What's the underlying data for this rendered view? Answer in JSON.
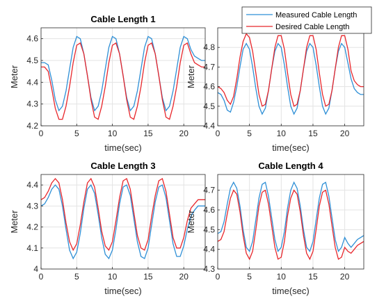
{
  "legend": {
    "placement": "top-right",
    "entries": [
      {
        "label": "Measured Cable Length",
        "color": "#2e8fd6"
      },
      {
        "label": "Desired Cable Length",
        "color": "#e8262b"
      }
    ]
  },
  "chart_data": [
    {
      "type": "line",
      "title": "Cable Length 1",
      "xlabel": "time(sec)",
      "ylabel": "Meter",
      "xlim": [
        0,
        23
      ],
      "ylim": [
        4.2,
        4.65
      ],
      "xticks": [
        0,
        5,
        10,
        15,
        20
      ],
      "yticks": [
        4.2,
        4.3,
        4.4,
        4.5,
        4.6
      ],
      "ytick_labels": [
        "4.2",
        "4.3",
        "4.4",
        "4.5",
        "4.6"
      ],
      "grid": true,
      "series": [
        {
          "name": "Measured Cable Length",
          "color": "#2e8fd6",
          "x": [
            0,
            0.5,
            1,
            1.5,
            2,
            2.5,
            3,
            3.5,
            4,
            4.5,
            5,
            5.5,
            6,
            6.5,
            7,
            7.5,
            8,
            8.5,
            9,
            9.5,
            10,
            10.5,
            11,
            11.5,
            12,
            12.5,
            13,
            13.5,
            14,
            14.5,
            15,
            15.5,
            16,
            16.5,
            17,
            17.5,
            18,
            18.5,
            19,
            19.5,
            20,
            20.5,
            21,
            21.5,
            22,
            22.5,
            23
          ],
          "y": [
            4.49,
            4.49,
            4.48,
            4.41,
            4.32,
            4.27,
            4.29,
            4.36,
            4.46,
            4.56,
            4.61,
            4.6,
            4.53,
            4.43,
            4.33,
            4.27,
            4.29,
            4.36,
            4.46,
            4.56,
            4.61,
            4.6,
            4.53,
            4.43,
            4.33,
            4.27,
            4.29,
            4.36,
            4.46,
            4.56,
            4.61,
            4.6,
            4.53,
            4.43,
            4.33,
            4.27,
            4.29,
            4.36,
            4.46,
            4.56,
            4.61,
            4.6,
            4.55,
            4.52,
            4.51,
            4.5,
            4.5
          ]
        },
        {
          "name": "Desired Cable Length",
          "color": "#e8262b",
          "x": [
            0,
            0.5,
            1,
            1.5,
            2,
            2.5,
            3,
            3.5,
            4,
            4.5,
            5,
            5.5,
            6,
            6.5,
            7,
            7.5,
            8,
            8.5,
            9,
            9.5,
            10,
            10.5,
            11,
            11.5,
            12,
            12.5,
            13,
            13.5,
            14,
            14.5,
            15,
            15.5,
            16,
            16.5,
            17,
            17.5,
            18,
            18.5,
            19,
            19.5,
            20,
            20.5,
            21,
            21.5,
            22,
            22.5,
            23
          ],
          "y": [
            4.47,
            4.47,
            4.45,
            4.37,
            4.28,
            4.23,
            4.23,
            4.29,
            4.38,
            4.49,
            4.57,
            4.58,
            4.53,
            4.43,
            4.32,
            4.24,
            4.23,
            4.29,
            4.38,
            4.49,
            4.57,
            4.58,
            4.53,
            4.43,
            4.32,
            4.24,
            4.23,
            4.29,
            4.38,
            4.49,
            4.57,
            4.58,
            4.53,
            4.43,
            4.32,
            4.24,
            4.23,
            4.29,
            4.38,
            4.49,
            4.57,
            4.58,
            4.53,
            4.49,
            4.48,
            4.47,
            4.47
          ]
        }
      ]
    },
    {
      "type": "line",
      "title": "",
      "xlabel": "time(sec)",
      "ylabel": "Meter",
      "xlim": [
        0,
        23
      ],
      "ylim": [
        4.4,
        4.9
      ],
      "xticks": [
        0,
        5,
        10,
        15,
        20
      ],
      "yticks": [
        4.4,
        4.5,
        4.6,
        4.7,
        4.8
      ],
      "ytick_labels": [
        "4.4",
        "4.5",
        "4.6",
        "4.7",
        "4.8"
      ],
      "grid": true,
      "series": [
        {
          "name": "Measured Cable Length",
          "color": "#2e8fd6",
          "x": [
            0,
            0.5,
            1,
            1.5,
            2,
            2.5,
            3,
            3.5,
            4,
            4.5,
            5,
            5.5,
            6,
            6.5,
            7,
            7.5,
            8,
            8.5,
            9,
            9.5,
            10,
            10.5,
            11,
            11.5,
            12,
            12.5,
            13,
            13.5,
            14,
            14.5,
            15,
            15.5,
            16,
            16.5,
            17,
            17.5,
            18,
            18.5,
            19,
            19.5,
            20,
            20.5,
            21,
            21.5,
            22,
            22.5,
            23
          ],
          "y": [
            4.57,
            4.56,
            4.53,
            4.48,
            4.47,
            4.52,
            4.6,
            4.7,
            4.79,
            4.82,
            4.79,
            4.7,
            4.59,
            4.5,
            4.46,
            4.49,
            4.58,
            4.69,
            4.78,
            4.82,
            4.8,
            4.71,
            4.6,
            4.5,
            4.46,
            4.49,
            4.58,
            4.69,
            4.78,
            4.82,
            4.8,
            4.71,
            4.6,
            4.5,
            4.46,
            4.49,
            4.58,
            4.69,
            4.78,
            4.82,
            4.8,
            4.72,
            4.64,
            4.59,
            4.57,
            4.56,
            4.56
          ]
        },
        {
          "name": "Desired Cable Length",
          "color": "#e8262b",
          "x": [
            0,
            0.5,
            1,
            1.5,
            2,
            2.5,
            3,
            3.5,
            4,
            4.5,
            5,
            5.5,
            6,
            6.5,
            7,
            7.5,
            8,
            8.5,
            9,
            9.5,
            10,
            10.5,
            11,
            11.5,
            12,
            12.5,
            13,
            13.5,
            14,
            14.5,
            15,
            15.5,
            16,
            16.5,
            17,
            17.5,
            18,
            18.5,
            19,
            19.5,
            20,
            20.5,
            21,
            21.5,
            22,
            22.5,
            23
          ],
          "y": [
            4.6,
            4.59,
            4.57,
            4.53,
            4.51,
            4.55,
            4.64,
            4.75,
            4.83,
            4.87,
            4.85,
            4.78,
            4.67,
            4.56,
            4.5,
            4.51,
            4.58,
            4.69,
            4.8,
            4.86,
            4.86,
            4.79,
            4.67,
            4.56,
            4.5,
            4.51,
            4.58,
            4.69,
            4.8,
            4.86,
            4.86,
            4.79,
            4.67,
            4.56,
            4.5,
            4.51,
            4.58,
            4.69,
            4.8,
            4.86,
            4.86,
            4.79,
            4.68,
            4.63,
            4.61,
            4.6,
            4.6
          ]
        }
      ]
    },
    {
      "type": "line",
      "title": "Cable Length 3",
      "xlabel": "time(sec)",
      "ylabel": "Meter",
      "xlim": [
        0,
        23
      ],
      "ylim": [
        4.0,
        4.45
      ],
      "xticks": [
        0,
        5,
        10,
        15,
        20
      ],
      "yticks": [
        4.0,
        4.1,
        4.2,
        4.3,
        4.4
      ],
      "ytick_labels": [
        "4",
        "4.1",
        "4.2",
        "4.3",
        "4.4"
      ],
      "grid": true,
      "series": [
        {
          "name": "Measured Cable Length",
          "color": "#2e8fd6",
          "x": [
            0,
            0.5,
            1,
            1.5,
            2,
            2.5,
            3,
            3.5,
            4,
            4.5,
            5,
            5.5,
            6,
            6.5,
            7,
            7.5,
            8,
            8.5,
            9,
            9.5,
            10,
            10.5,
            11,
            11.5,
            12,
            12.5,
            13,
            13.5,
            14,
            14.5,
            15,
            15.5,
            16,
            16.5,
            17,
            17.5,
            18,
            18.5,
            19,
            19.5,
            20,
            20.5,
            21,
            21.5,
            22,
            22.5,
            23
          ],
          "y": [
            4.3,
            4.31,
            4.34,
            4.38,
            4.4,
            4.38,
            4.3,
            4.19,
            4.09,
            4.05,
            4.08,
            4.17,
            4.29,
            4.38,
            4.4,
            4.36,
            4.26,
            4.15,
            4.07,
            4.05,
            4.09,
            4.19,
            4.31,
            4.39,
            4.4,
            4.35,
            4.24,
            4.13,
            4.06,
            4.05,
            4.1,
            4.21,
            4.32,
            4.39,
            4.4,
            4.34,
            4.23,
            4.12,
            4.06,
            4.06,
            4.11,
            4.19,
            4.25,
            4.28,
            4.3,
            4.3,
            4.3
          ]
        },
        {
          "name": "Desired Cable Length",
          "color": "#e8262b",
          "x": [
            0,
            0.5,
            1,
            1.5,
            2,
            2.5,
            3,
            3.5,
            4,
            4.5,
            5,
            5.5,
            6,
            6.5,
            7,
            7.5,
            8,
            8.5,
            9,
            9.5,
            10,
            10.5,
            11,
            11.5,
            12,
            12.5,
            13,
            13.5,
            14,
            14.5,
            15,
            15.5,
            16,
            16.5,
            17,
            17.5,
            18,
            18.5,
            19,
            19.5,
            20,
            20.5,
            21,
            21.5,
            22,
            22.5,
            23
          ],
          "y": [
            4.33,
            4.34,
            4.37,
            4.41,
            4.43,
            4.41,
            4.33,
            4.22,
            4.13,
            4.09,
            4.12,
            4.21,
            4.32,
            4.41,
            4.43,
            4.39,
            4.29,
            4.18,
            4.11,
            4.09,
            4.13,
            4.23,
            4.34,
            4.42,
            4.43,
            4.38,
            4.27,
            4.16,
            4.1,
            4.09,
            4.14,
            4.25,
            4.35,
            4.42,
            4.43,
            4.37,
            4.26,
            4.15,
            4.1,
            4.1,
            4.15,
            4.23,
            4.29,
            4.31,
            4.33,
            4.33,
            4.33
          ]
        }
      ]
    },
    {
      "type": "line",
      "title": "Cable Length 4",
      "xlabel": "time(sec)",
      "ylabel": "Meter",
      "xlim": [
        0,
        23
      ],
      "ylim": [
        4.3,
        4.78
      ],
      "xticks": [
        0,
        5,
        10,
        15,
        20
      ],
      "yticks": [
        4.3,
        4.4,
        4.5,
        4.6,
        4.7
      ],
      "ytick_labels": [
        "4.3",
        "4.4",
        "4.5",
        "4.6",
        "4.7"
      ],
      "grid": true,
      "series": [
        {
          "name": "Measured Cable Length",
          "color": "#2e8fd6",
          "x": [
            0,
            0.5,
            1,
            1.5,
            2,
            2.5,
            3,
            3.5,
            4,
            4.5,
            5,
            5.5,
            6,
            6.5,
            7,
            7.5,
            8,
            8.5,
            9,
            9.5,
            10,
            10.5,
            11,
            11.5,
            12,
            12.5,
            13,
            13.5,
            14,
            14.5,
            15,
            15.5,
            16,
            16.5,
            17,
            17.5,
            18,
            18.5,
            19,
            19.5,
            20,
            20.5,
            21,
            21.5,
            22,
            22.5,
            23
          ],
          "y": [
            4.48,
            4.49,
            4.54,
            4.63,
            4.71,
            4.74,
            4.71,
            4.62,
            4.5,
            4.41,
            4.39,
            4.44,
            4.55,
            4.66,
            4.73,
            4.74,
            4.67,
            4.56,
            4.45,
            4.39,
            4.41,
            4.49,
            4.61,
            4.7,
            4.74,
            4.71,
            4.62,
            4.5,
            4.41,
            4.39,
            4.44,
            4.55,
            4.66,
            4.73,
            4.74,
            4.67,
            4.56,
            4.45,
            4.39,
            4.41,
            4.46,
            4.43,
            4.41,
            4.43,
            4.45,
            4.46,
            4.47
          ]
        },
        {
          "name": "Desired Cable Length",
          "color": "#e8262b",
          "x": [
            0,
            0.5,
            1,
            1.5,
            2,
            2.5,
            3,
            3.5,
            4,
            4.5,
            5,
            5.5,
            6,
            6.5,
            7,
            7.5,
            8,
            8.5,
            9,
            9.5,
            10,
            10.5,
            11,
            11.5,
            12,
            12.5,
            13,
            13.5,
            14,
            14.5,
            15,
            15.5,
            16,
            16.5,
            17,
            17.5,
            18,
            18.5,
            19,
            19.5,
            20,
            20.5,
            21,
            21.5,
            22,
            22.5,
            23
          ],
          "y": [
            4.44,
            4.45,
            4.49,
            4.58,
            4.66,
            4.7,
            4.68,
            4.59,
            4.47,
            4.38,
            4.35,
            4.39,
            4.5,
            4.62,
            4.69,
            4.7,
            4.63,
            4.52,
            4.41,
            4.35,
            4.36,
            4.44,
            4.57,
            4.66,
            4.7,
            4.68,
            4.59,
            4.47,
            4.38,
            4.35,
            4.39,
            4.5,
            4.62,
            4.69,
            4.7,
            4.63,
            4.52,
            4.41,
            4.35,
            4.36,
            4.41,
            4.39,
            4.38,
            4.4,
            4.42,
            4.43,
            4.44
          ]
        }
      ]
    }
  ]
}
